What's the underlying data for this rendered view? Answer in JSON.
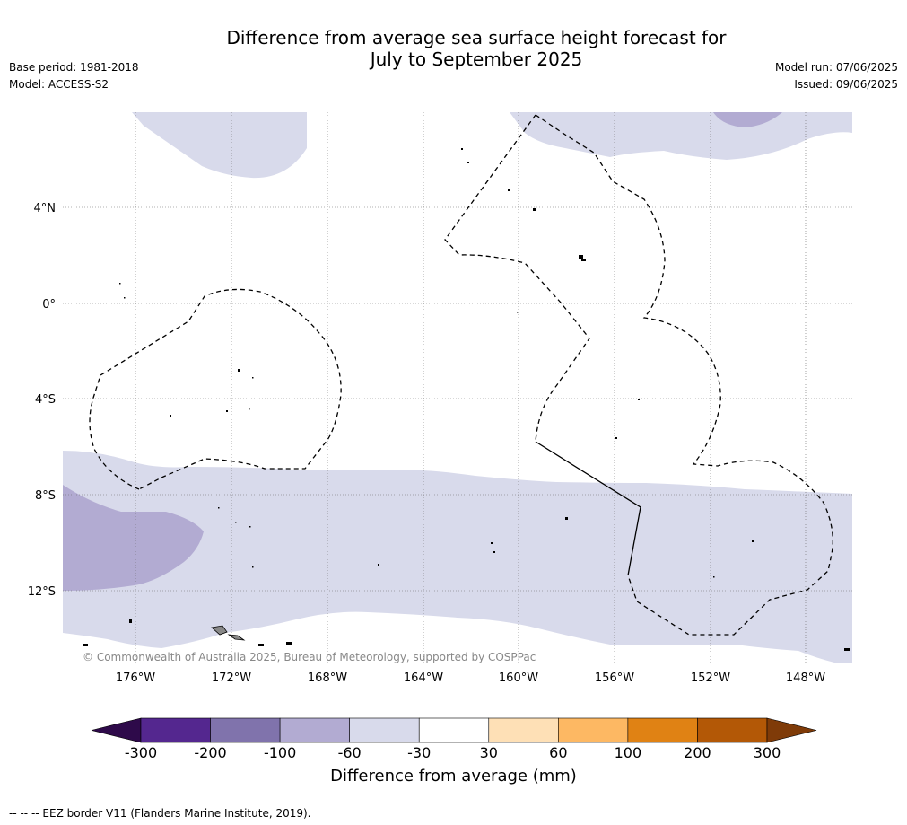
{
  "title_line1": "Difference from average sea surface height forecast for",
  "title_line2": "July to September 2025",
  "base_period": "Base period: 1981-2018",
  "model": "Model: ACCESS-S2",
  "model_run": "Model run: 07/06/2025",
  "issued": "Issued: 09/06/2025",
  "copyright": "© Commonwealth of Australia 2025, Bureau of Meteorology, supported by COSPPac",
  "footer": "-- -- -- EEZ border V11 (Flanders Marine Institute, 2019).",
  "colorbar": {
    "label": "Difference from average (mm)",
    "ticks": [
      "-300",
      "-200",
      "-100",
      "-60",
      "-30",
      "30",
      "60",
      "100",
      "200",
      "300"
    ],
    "colors": [
      "#2e0a4a",
      "#54278f",
      "#8073ac",
      "#b2abd2",
      "#d8daeb",
      "#ffffff",
      "#fee0b6",
      "#fdb863",
      "#e08214",
      "#b35806",
      "#7f3b08"
    ]
  },
  "map": {
    "lat_labels": [
      "4°N",
      "0°",
      "4°S",
      "8°S",
      "12°S"
    ],
    "lon_labels": [
      "176°W",
      "172°W",
      "168°W",
      "164°W",
      "160°W",
      "156°W",
      "152°W",
      "148°W"
    ]
  }
}
